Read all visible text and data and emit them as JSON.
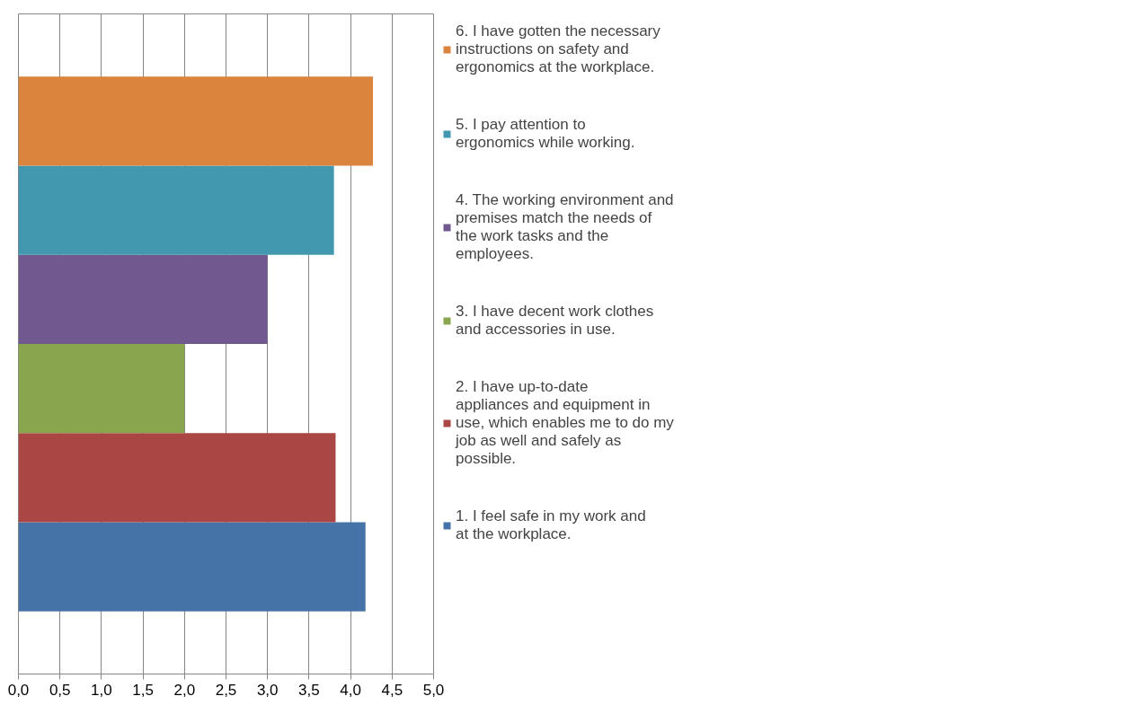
{
  "chart_data": {
    "type": "bar",
    "orientation": "horizontal",
    "categories": [
      null
    ],
    "series": [
      {
        "name": "1. I feel safe in my work and at the workplace.",
        "color": "#4573a7",
        "values": [
          4.18
        ]
      },
      {
        "name": "2. I have up-to-date appliances and equipment in use, which enables me to do my job as well and safely as possible.",
        "color": "#aa4644",
        "values": [
          3.82
        ]
      },
      {
        "name": "3. I have decent work clothes and accessories in use.",
        "color": "#89a54e",
        "values": [
          2.0
        ]
      },
      {
        "name": "4. The working environment and premises match the needs of the work tasks and the employees.",
        "color": "#71588f",
        "values": [
          3.0
        ]
      },
      {
        "name": "5. I pay attention to ergonomics while working.",
        "color": "#4298af",
        "values": [
          3.8
        ]
      },
      {
        "name": "6. I have gotten the necessary instructions on safety and ergonomics at the workplace.",
        "color": "#db843d",
        "values": [
          4.27
        ]
      }
    ],
    "xlim": [
      0,
      5
    ],
    "xticks": [
      {
        "value": 0,
        "label": "0,0"
      },
      {
        "value": 0.5,
        "label": "0,5"
      },
      {
        "value": 1,
        "label": "1,0"
      },
      {
        "value": 1.5,
        "label": "1,5"
      },
      {
        "value": 2,
        "label": "2,0"
      },
      {
        "value": 2.5,
        "label": "2,5"
      },
      {
        "value": 3,
        "label": "3,0"
      },
      {
        "value": 3.5,
        "label": "3,5"
      },
      {
        "value": 4,
        "label": "4,0"
      },
      {
        "value": 4.5,
        "label": "4,5"
      },
      {
        "value": 5,
        "label": "5,0"
      }
    ],
    "grid": "x",
    "legend": "right"
  }
}
